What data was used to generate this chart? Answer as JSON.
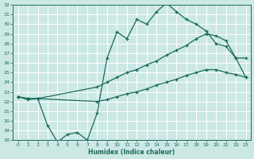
{
  "xlabel": "Humidex (Indice chaleur)",
  "bg_color": "#cce8e5",
  "grid_color": "#b0d8d4",
  "line_color": "#1a6b5a",
  "xlim": [
    -0.5,
    23.5
  ],
  "ylim": [
    18,
    32
  ],
  "yticks": [
    18,
    19,
    20,
    21,
    22,
    23,
    24,
    25,
    26,
    27,
    28,
    29,
    30,
    31,
    32
  ],
  "xticks": [
    0,
    1,
    2,
    3,
    4,
    5,
    6,
    7,
    8,
    9,
    10,
    11,
    12,
    13,
    14,
    15,
    16,
    17,
    18,
    19,
    20,
    21,
    22,
    23
  ],
  "line1_x": [
    0,
    1,
    2,
    3,
    4,
    5,
    6,
    7,
    8,
    9,
    10,
    11,
    12,
    13,
    14,
    15,
    16,
    17,
    18,
    19,
    20,
    21,
    22,
    23
  ],
  "line1_y": [
    22.5,
    22.2,
    22.3,
    19.5,
    17.8,
    18.6,
    18.8,
    18.0,
    20.8,
    26.5,
    29.2,
    28.5,
    30.5,
    30.0,
    31.3,
    32.2,
    31.3,
    30.5,
    30.0,
    29.3,
    28.0,
    27.7,
    26.5,
    24.5
  ],
  "line2_x": [
    0,
    1,
    2,
    8,
    9,
    10,
    11,
    12,
    13,
    14,
    15,
    16,
    17,
    18,
    19,
    20,
    21,
    22,
    23
  ],
  "line2_y": [
    22.5,
    22.3,
    22.3,
    23.5,
    24.0,
    24.5,
    25.0,
    25.3,
    25.8,
    26.2,
    26.8,
    27.3,
    27.8,
    28.5,
    29.0,
    28.8,
    28.3,
    26.5,
    26.5
  ],
  "line3_x": [
    0,
    1,
    2,
    8,
    9,
    10,
    11,
    12,
    13,
    14,
    15,
    16,
    17,
    18,
    19,
    20,
    21,
    22,
    23
  ],
  "line3_y": [
    22.5,
    22.3,
    22.3,
    22.0,
    22.2,
    22.5,
    22.8,
    23.0,
    23.3,
    23.7,
    24.0,
    24.3,
    24.7,
    25.0,
    25.3,
    25.3,
    25.0,
    24.8,
    24.5
  ]
}
